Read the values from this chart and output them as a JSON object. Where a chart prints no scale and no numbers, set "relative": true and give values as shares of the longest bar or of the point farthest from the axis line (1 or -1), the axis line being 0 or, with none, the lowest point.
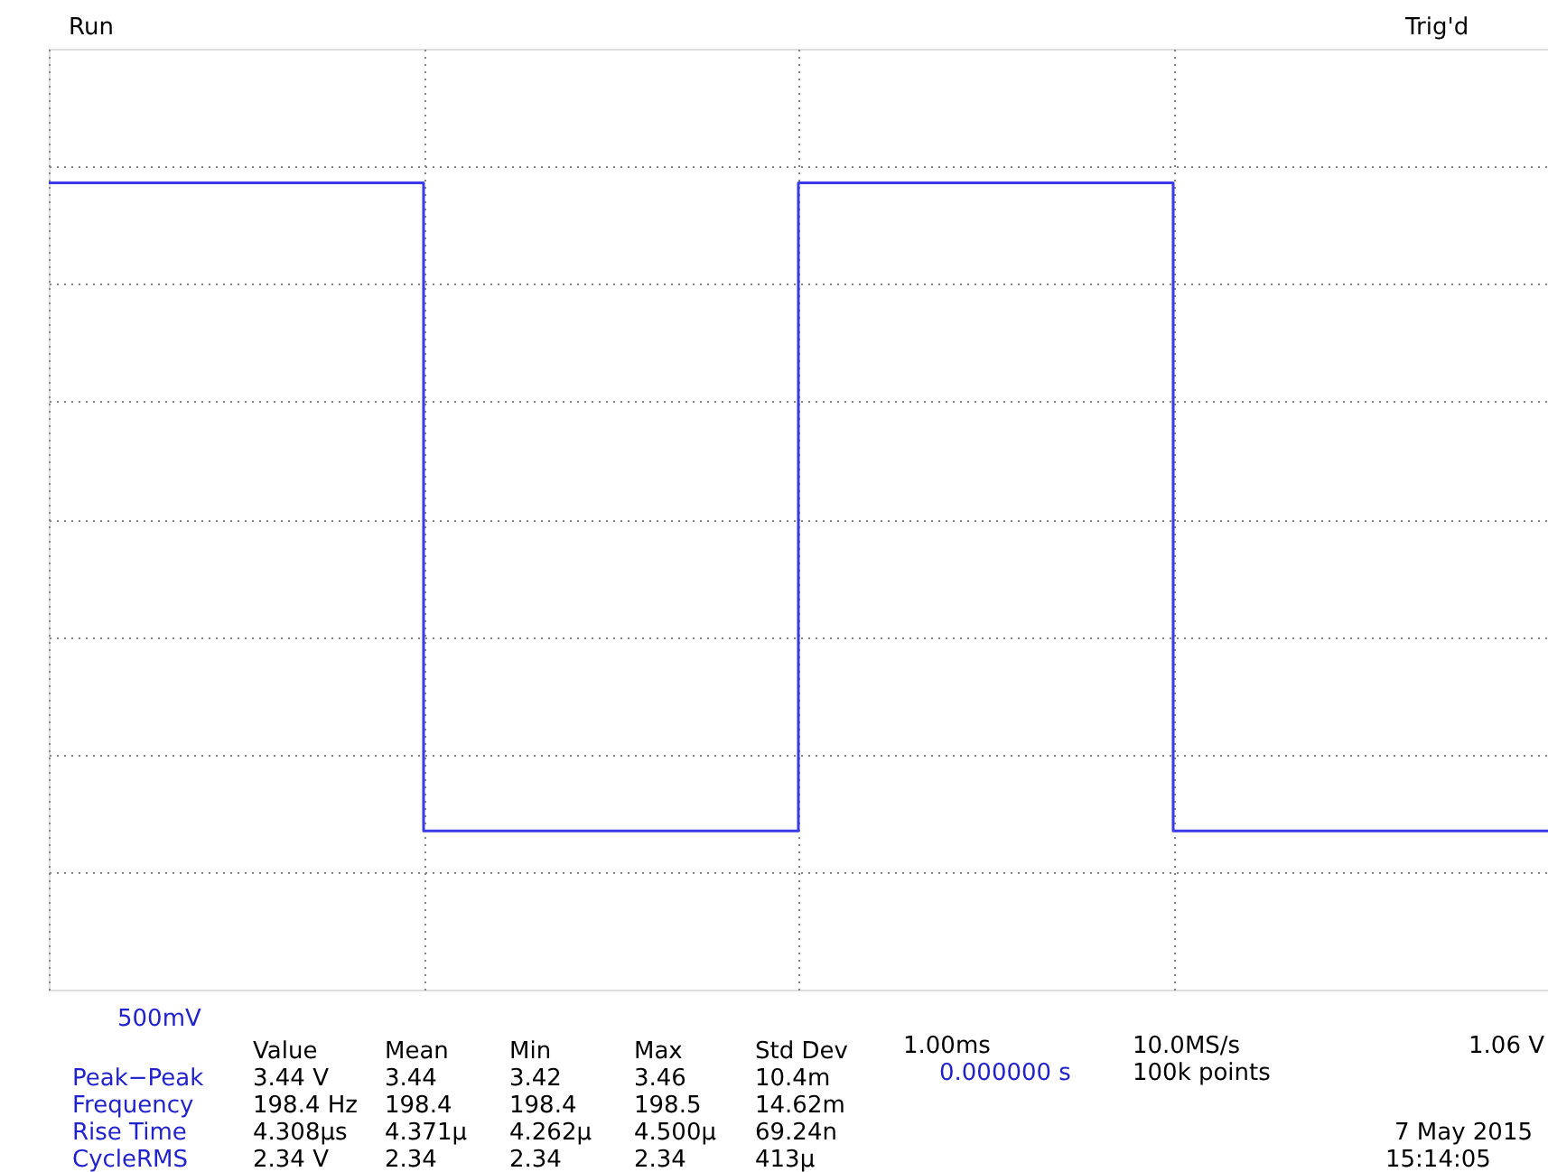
{
  "chart_data": {
    "type": "step",
    "relative": true,
    "grid": true,
    "categories": [
      null,
      null,
      null,
      null,
      null
    ],
    "series": [
      {
        "color": "#3a3ae8",
        "values": [
          1,
          0,
          1,
          0,
          0
        ]
      }
    ],
    "annotations": [
      "Run",
      "Trig'd",
      "500mV",
      "Value",
      "Mean",
      "Min",
      "Max",
      "Std Dev",
      "Peak−Peak",
      "3.44 V",
      "3.44",
      "3.42",
      "3.46",
      "10.4m",
      "Frequency",
      "198.4 Hz",
      "198.4",
      "198.4",
      "198.5",
      "14.62m",
      "Rise Time",
      "4.308µs",
      "4.371µ",
      "4.262µ",
      "4.500µ",
      "69.24n",
      "CycleRMS",
      "2.34 V",
      "2.34",
      "2.34",
      "2.34",
      "413µ",
      "1.00ms",
      "0.000000 s",
      "10.0MS/s",
      "100k points",
      "1.06 V",
      "7 May 2015",
      "15:14:05"
    ]
  }
}
